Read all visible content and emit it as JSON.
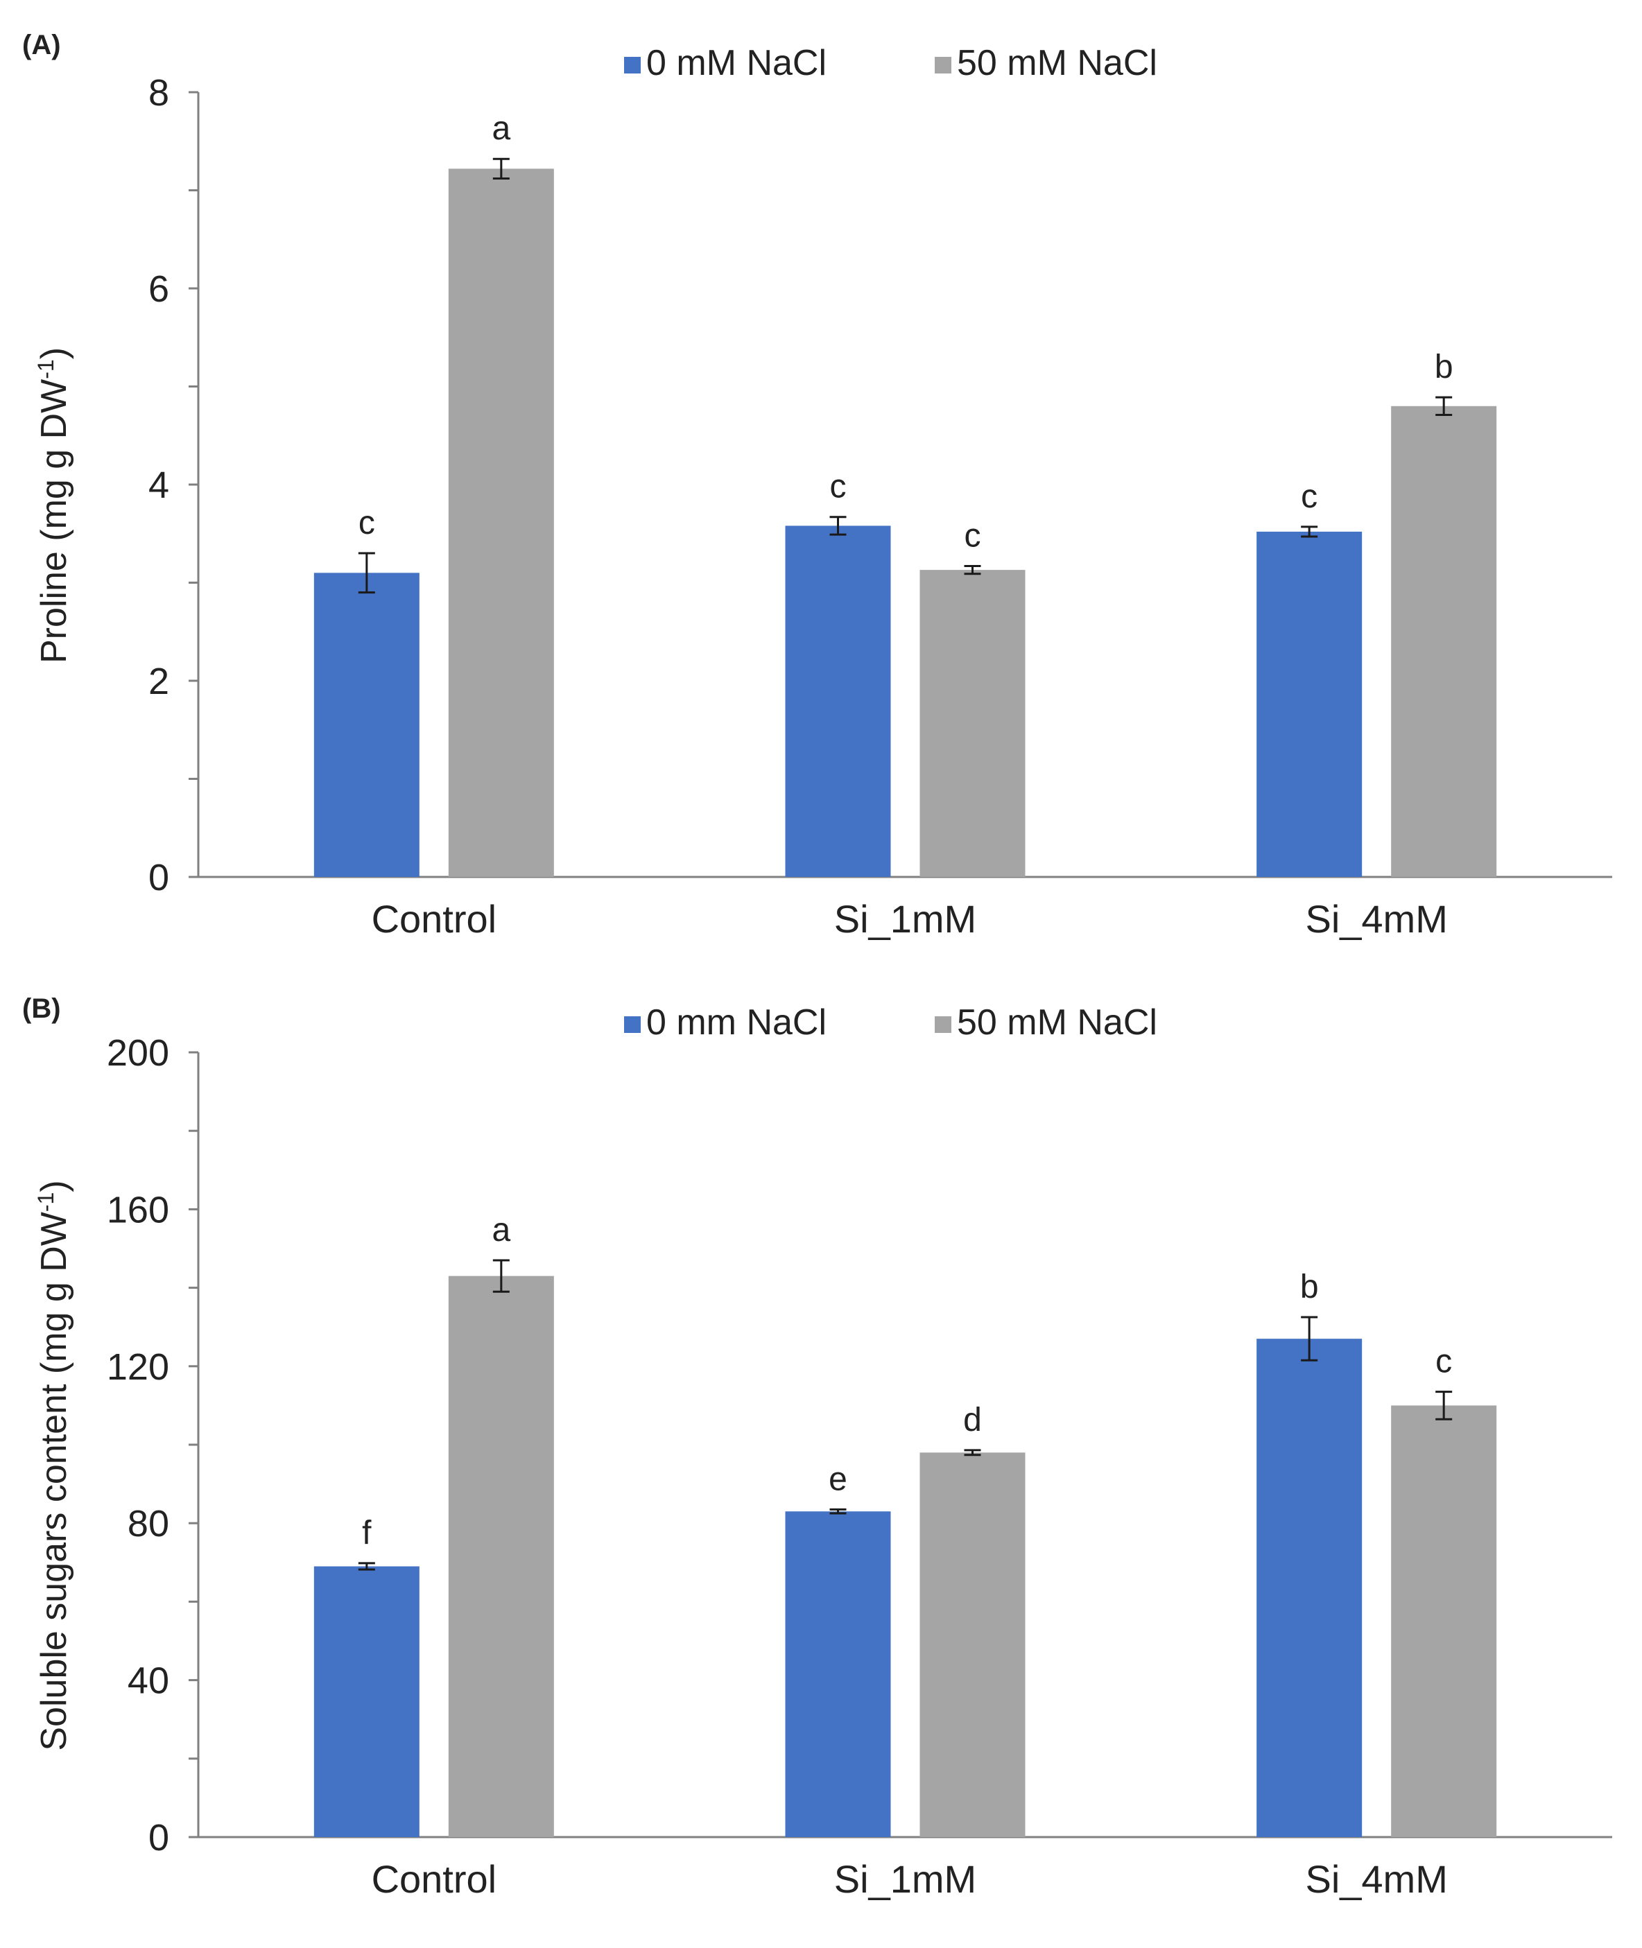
{
  "colors": {
    "series0": "#4472C4",
    "series1": "#A5A5A5",
    "axis": "#808080",
    "text": "#222222"
  },
  "chart_data": [
    {
      "panel_label": "(A)",
      "type": "bar",
      "title": "",
      "categories": [
        "Control",
        "Si_1mM",
        "Si_4mM"
      ],
      "series": [
        {
          "name": "0 mM NaCl",
          "values": [
            3.1,
            3.58,
            3.52
          ],
          "errors": [
            0.2,
            0.09,
            0.05
          ],
          "letters": [
            "c",
            "c",
            "c"
          ]
        },
        {
          "name": "50 mM NaCl",
          "values": [
            7.22,
            3.13,
            4.8
          ],
          "errors": [
            0.1,
            0.04,
            0.09
          ],
          "letters": [
            "a",
            "c",
            "b"
          ]
        }
      ],
      "xlabel": "",
      "ylabel_main": "Proline (mg g DW",
      "ylabel_sup": "-1",
      "ylabel_close": ")",
      "ylim": [
        0,
        8
      ],
      "ymajor": [
        0,
        2,
        4,
        6,
        8
      ],
      "yminor_step": 1,
      "legend_position": "top-center"
    },
    {
      "panel_label": "(B)",
      "type": "bar",
      "title": "",
      "categories": [
        "Control",
        "Si_1mM",
        "Si_4mM"
      ],
      "series": [
        {
          "name": "0 mm NaCl",
          "values": [
            69,
            83,
            127
          ],
          "errors": [
            0.8,
            0.5,
            5.5
          ],
          "letters": [
            "f",
            "e",
            "b"
          ]
        },
        {
          "name": "50 mM NaCl",
          "values": [
            143,
            98,
            110
          ],
          "errors": [
            4,
            0.6,
            3.5
          ],
          "letters": [
            "a",
            "d",
            "c"
          ]
        }
      ],
      "xlabel": "",
      "ylabel_main": "Soluble sugars content (mg g DW",
      "ylabel_sup": "-1",
      "ylabel_close": ")",
      "ylim": [
        0,
        200
      ],
      "ymajor": [
        0,
        40,
        80,
        120,
        160,
        200
      ],
      "yminor_step": 20,
      "legend_position": "top-center"
    }
  ]
}
